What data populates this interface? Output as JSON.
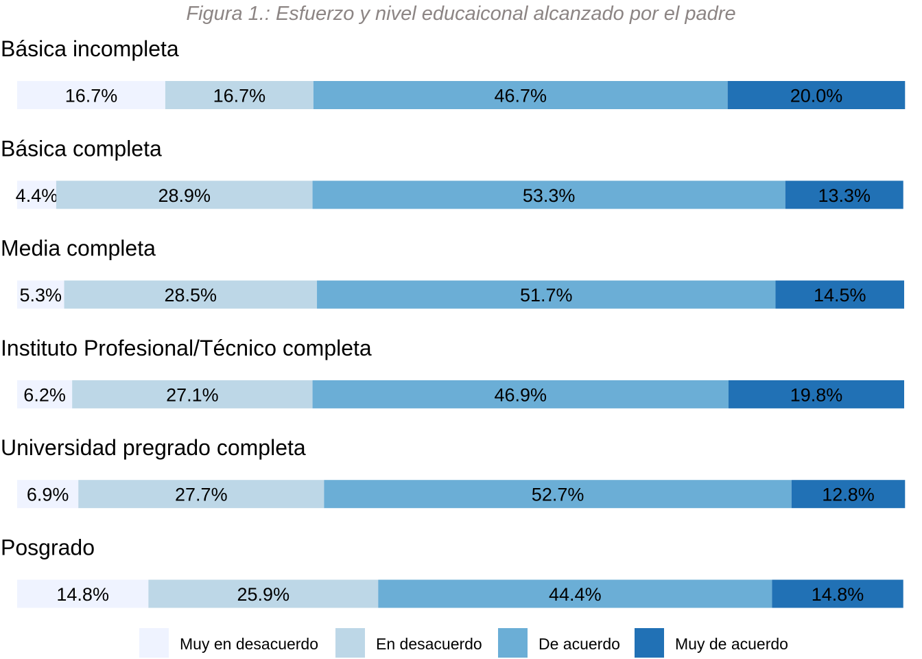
{
  "chart_data": {
    "type": "bar",
    "orientation": "horizontal",
    "stacked": true,
    "title": "Figura 1.: Esfuerzo y nivel educaiconal alcanzado por el padre",
    "xlim": [
      0,
      100
    ],
    "grid": false,
    "legend_position": "bottom",
    "categories": [
      "Básica incompleta",
      "Básica completa",
      "Media completa",
      "Instituto Profesional/Técnico completa",
      "Universidad pregrado completa",
      "Posgrado"
    ],
    "series": [
      {
        "name": "Muy en desacuerdo",
        "color": "#eff3ff",
        "values": [
          16.7,
          4.4,
          5.3,
          6.2,
          6.9,
          14.8
        ]
      },
      {
        "name": "En desacuerdo",
        "color": "#bdd7e7",
        "values": [
          16.7,
          28.9,
          28.5,
          27.1,
          27.7,
          25.9
        ]
      },
      {
        "name": "De acuerdo",
        "color": "#6baed6",
        "values": [
          46.7,
          53.3,
          51.7,
          46.9,
          52.7,
          44.4
        ]
      },
      {
        "name": "Muy de acuerdo",
        "color": "#2171b5",
        "values": [
          20.0,
          13.3,
          14.5,
          19.8,
          12.8,
          14.8
        ]
      }
    ],
    "value_suffix": "%"
  }
}
